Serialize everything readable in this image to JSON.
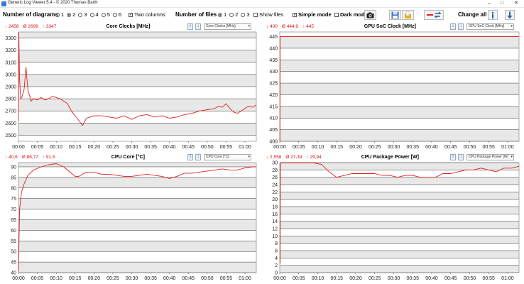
{
  "window": {
    "title": "Generic Log Viewer 5.4 - © 2020 Thomas Barth"
  },
  "toolbar": {
    "num_diagrams_label": "Number of diagrams",
    "diagram_options": [
      "1",
      "2",
      "3",
      "4",
      "5",
      "6"
    ],
    "diagram_selected": "2",
    "two_columns_label": "Two columns",
    "two_columns_checked": true,
    "num_files_label": "Number of files",
    "file_options": [
      "1",
      "2",
      "3"
    ],
    "file_selected": "1",
    "show_files_label": "Show files",
    "show_files_checked": false,
    "simple_mode_label": "Simple mode",
    "simple_mode_checked": true,
    "dark_mode_label": "Dark mod",
    "dark_mode_checked": false,
    "change_all_label": "Change all"
  },
  "chart_data": [
    {
      "type": "line",
      "title": "Core Clocks [MHz]",
      "selector": "Core Clocks [MHz]",
      "stats": {
        "min": "2458",
        "avg": "2699",
        "max": "3347"
      },
      "ylim": [
        2450,
        3350
      ],
      "yticks": [
        2500,
        2600,
        2700,
        2800,
        2900,
        3000,
        3100,
        3200,
        3300
      ],
      "xticks": [
        "00:00",
        "00:05",
        "00:10",
        "00:15",
        "00:20",
        "00:25",
        "00:30",
        "00:35",
        "00:40",
        "00:45",
        "00:50",
        "00:55",
        "01:00"
      ],
      "xmax_min": 63,
      "series": [
        {
          "color": "#e02020",
          "x": [
            0,
            0.1,
            0.3,
            0.6,
            1,
            1.5,
            2,
            2.5,
            3,
            3.3,
            4,
            5,
            6,
            7,
            8,
            9,
            10,
            11,
            12,
            13,
            14,
            15,
            16,
            17,
            18,
            19,
            20,
            22,
            24,
            26,
            28,
            30,
            32,
            34,
            36,
            38,
            40,
            42,
            44,
            46,
            48,
            50,
            52,
            53,
            54,
            55,
            56,
            57,
            58,
            59,
            60,
            61,
            62,
            63
          ],
          "y": [
            2620,
            3347,
            2950,
            2800,
            2820,
            2880,
            3060,
            2870,
            2820,
            2780,
            2800,
            2790,
            2810,
            2790,
            2800,
            2820,
            2810,
            2800,
            2780,
            2760,
            2700,
            2660,
            2620,
            2580,
            2640,
            2650,
            2660,
            2660,
            2650,
            2640,
            2660,
            2630,
            2660,
            2670,
            2650,
            2660,
            2640,
            2650,
            2670,
            2680,
            2700,
            2710,
            2720,
            2740,
            2730,
            2760,
            2720,
            2690,
            2680,
            2700,
            2720,
            2740,
            2730,
            2750
          ]
        }
      ]
    },
    {
      "type": "line",
      "title": "GPU SoC Clock [MHz]",
      "selector": "GPU SoC Clock [MHz]",
      "stats": {
        "min": "400",
        "avg": "444,9",
        "max": "445"
      },
      "ylim": [
        400,
        447
      ],
      "yticks": [
        400,
        405,
        410,
        415,
        420,
        425,
        430,
        435,
        440,
        445
      ],
      "xticks": [
        "00:00",
        "00:05",
        "00:10",
        "00:15",
        "00:20",
        "00:25",
        "00:30",
        "00:35",
        "00:40",
        "00:45",
        "00:50",
        "00:55",
        "01:00"
      ],
      "xmax_min": 63,
      "series": [
        {
          "color": "#e02020",
          "x": [
            0,
            0.05,
            0.1,
            63
          ],
          "y": [
            400,
            400,
            445,
            445
          ]
        }
      ]
    },
    {
      "type": "line",
      "title": "CPU Core [°C]",
      "selector": "CPU Core [°C]",
      "stats": {
        "min": "40,6",
        "avg": "86,77",
        "max": "91,5"
      },
      "ylim": [
        40,
        92
      ],
      "yticks": [
        40,
        45,
        50,
        55,
        60,
        65,
        70,
        75,
        80,
        85,
        90
      ],
      "xticks": [
        "00:00",
        "00:05",
        "00:10",
        "00:15",
        "00:20",
        "00:25",
        "00:30",
        "00:35",
        "00:40",
        "00:45",
        "00:50",
        "00:55",
        "01:00"
      ],
      "xmax_min": 63,
      "series": [
        {
          "color": "#e02020",
          "x": [
            0,
            0.3,
            0.8,
            1.5,
            2.5,
            4,
            6,
            8,
            10,
            12,
            14,
            15,
            16,
            18,
            20,
            22,
            24,
            26,
            28,
            30,
            32,
            34,
            36,
            38,
            40,
            42,
            44,
            46,
            48,
            50,
            52,
            54,
            56,
            58,
            60,
            62,
            63
          ],
          "y": [
            40.6,
            70,
            78,
            82,
            86,
            88.5,
            90,
            91,
            91.5,
            90,
            87,
            85.5,
            85.5,
            87.5,
            87.5,
            86.5,
            86.5,
            86,
            85.5,
            85.5,
            86,
            86.5,
            86,
            85.5,
            84.5,
            85.5,
            87,
            87,
            87.5,
            88,
            88.5,
            89,
            88.5,
            88.5,
            89.5,
            90,
            90
          ]
        }
      ]
    },
    {
      "type": "line",
      "title": "CPU Package Power [W]",
      "selector": "CPU Package Power [W]",
      "stats": {
        "min": "2,558",
        "avg": "27,39",
        "max": "29,94"
      },
      "ylim": [
        0,
        30
      ],
      "yticks": [
        0,
        2,
        4,
        6,
        8,
        10,
        12,
        14,
        16,
        18,
        20,
        22,
        24,
        26,
        28,
        30
      ],
      "xticks": [
        "00:00",
        "00:05",
        "00:10",
        "00:15",
        "00:20",
        "00:25",
        "00:30",
        "00:35",
        "00:40",
        "00:45",
        "00:50",
        "00:55",
        "01:00"
      ],
      "xmax_min": 63,
      "series": [
        {
          "color": "#e02020",
          "x": [
            0,
            0.1,
            0.2,
            1,
            3,
            6,
            9,
            11,
            13,
            15,
            17,
            19,
            21,
            23,
            25,
            27,
            29,
            31,
            33,
            35,
            37,
            39,
            41,
            43,
            45,
            47,
            49,
            51,
            53,
            55,
            57,
            59,
            61,
            63
          ],
          "y": [
            2.558,
            2.558,
            29.9,
            29.9,
            29.9,
            29.9,
            29.9,
            29.5,
            27.5,
            26,
            26.5,
            27,
            27,
            27,
            27,
            26.5,
            26.5,
            26,
            26.5,
            26.5,
            26,
            26,
            26,
            27,
            27,
            27.5,
            28,
            28,
            28.5,
            28,
            27.5,
            28.5,
            28.5,
            29
          ]
        }
      ]
    }
  ]
}
